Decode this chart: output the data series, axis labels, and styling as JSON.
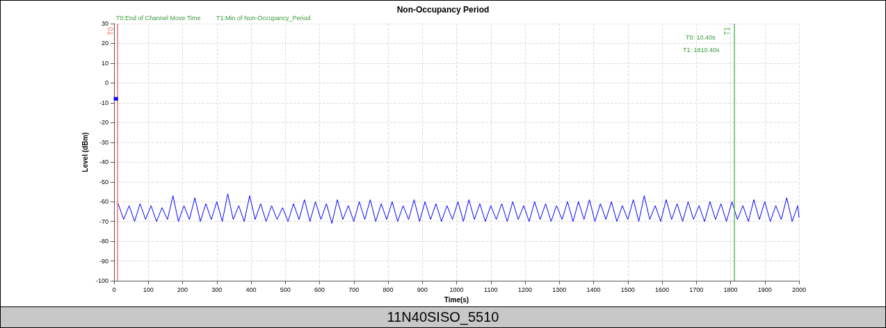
{
  "chart_data": {
    "type": "line",
    "title": "Non-Occupancy Period",
    "xlabel": "Time(s)",
    "ylabel": "Level (dBm)",
    "xlim": [
      0,
      2000
    ],
    "xticks": [
      0,
      100,
      200,
      300,
      400,
      500,
      600,
      700,
      800,
      900,
      1000,
      1100,
      1200,
      1300,
      1400,
      1500,
      1600,
      1700,
      1800,
      1900,
      2000
    ],
    "ylim": [
      -100,
      30
    ],
    "yticks": [
      -100,
      -90,
      -80,
      -70,
      -60,
      -50,
      -40,
      -30,
      -20,
      -10,
      0,
      10,
      20,
      30
    ],
    "grid": true,
    "marker": "none",
    "line_style": "solid",
    "series": [
      {
        "type": "scatter",
        "marker": "square",
        "color": "#0000ff",
        "x": [
          4,
          7
        ],
        "values": [
          -8,
          -8
        ]
      },
      {
        "color": "#0000ff",
        "x": [
          12,
          28,
          44,
          60,
          76,
          92,
          108,
          124,
          140,
          156,
          172,
          188,
          204,
          220,
          236,
          252,
          268,
          284,
          300,
          316,
          332,
          348,
          364,
          380,
          396,
          412,
          428,
          444,
          460,
          476,
          492,
          508,
          524,
          540,
          556,
          572,
          588,
          604,
          620,
          636,
          652,
          668,
          684,
          700,
          716,
          732,
          748,
          764,
          780,
          796,
          812,
          828,
          844,
          860,
          876,
          892,
          908,
          924,
          940,
          956,
          972,
          988,
          1004,
          1020,
          1036,
          1052,
          1068,
          1084,
          1100,
          1116,
          1132,
          1148,
          1164,
          1180,
          1196,
          1212,
          1228,
          1244,
          1260,
          1276,
          1292,
          1308,
          1324,
          1340,
          1356,
          1372,
          1388,
          1404,
          1420,
          1436,
          1452,
          1468,
          1484,
          1500,
          1516,
          1532,
          1548,
          1564,
          1580,
          1596,
          1612,
          1628,
          1644,
          1660,
          1676,
          1692,
          1708,
          1724,
          1740,
          1756,
          1772,
          1788,
          1804,
          1820,
          1836,
          1852,
          1868,
          1884,
          1900,
          1916,
          1932,
          1948,
          1964,
          1980,
          1996,
          2000
        ],
        "values": [
          -61,
          -69,
          -62,
          -70,
          -61,
          -69,
          -62,
          -70,
          -63,
          -69,
          -57,
          -70,
          -62,
          -69,
          -58,
          -70,
          -61,
          -69,
          -60,
          -70,
          -56,
          -69,
          -62,
          -70,
          -57,
          -69,
          -61,
          -70,
          -62,
          -69,
          -63,
          -70,
          -61,
          -69,
          -59,
          -70,
          -60,
          -69,
          -61,
          -71,
          -59,
          -69,
          -62,
          -70,
          -60,
          -69,
          -59,
          -70,
          -61,
          -69,
          -60,
          -70,
          -62,
          -69,
          -59,
          -70,
          -60,
          -69,
          -61,
          -70,
          -62,
          -69,
          -60,
          -70,
          -59,
          -69,
          -61,
          -70,
          -62,
          -69,
          -61,
          -70,
          -60,
          -69,
          -62,
          -70,
          -60,
          -69,
          -61,
          -70,
          -62,
          -69,
          -60,
          -70,
          -60,
          -69,
          -59,
          -70,
          -61,
          -69,
          -60,
          -70,
          -62,
          -69,
          -59,
          -70,
          -57,
          -69,
          -62,
          -70,
          -59,
          -69,
          -61,
          -70,
          -60,
          -69,
          -62,
          -70,
          -60,
          -69,
          -61,
          -70,
          -60,
          -69,
          -62,
          -70,
          -59,
          -69,
          -60,
          -70,
          -62,
          -69,
          -58,
          -70,
          -62,
          -68
        ]
      }
    ],
    "ref_lines": [
      {
        "axis": "x",
        "value": 10.4,
        "label": "T0",
        "color": "#f07070"
      },
      {
        "axis": "x",
        "value": 1810.4,
        "label": "T1",
        "color": "#5cb85c"
      }
    ],
    "annotations": [
      "T0:End of Channel Move Time",
      "T1:Min of Non-Occupancy_Period",
      "T0: 10.40s",
      "T1: 1810.40s",
      "11N40SISO_5510"
    ]
  }
}
